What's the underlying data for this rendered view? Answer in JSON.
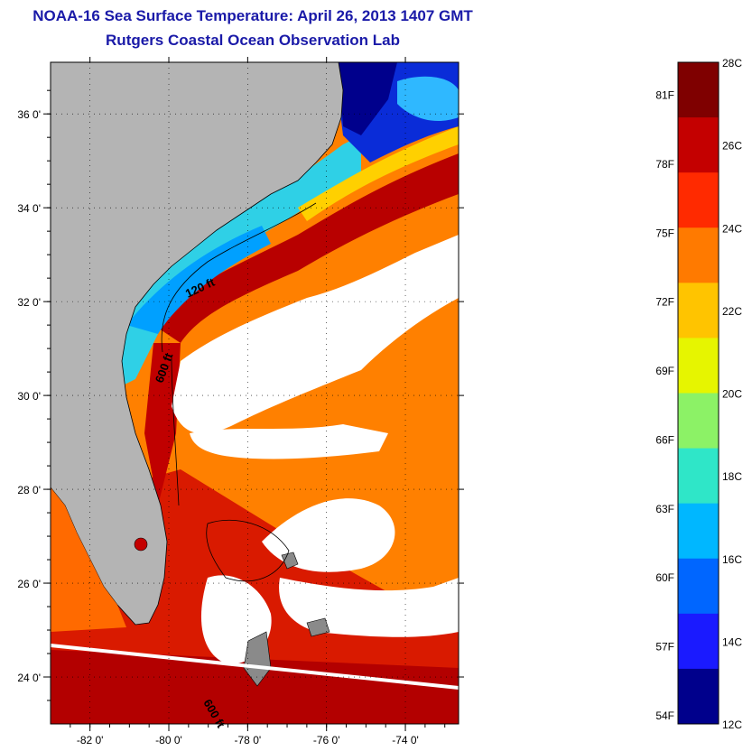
{
  "title": "NOAA-16 Sea Surface Temperature:  April 26, 2013 1407 GMT",
  "subtitle": "Rutgers Coastal Ocean Observation Lab",
  "lat_ticks": [
    {
      "value": 36,
      "label": "36 0'"
    },
    {
      "value": 34,
      "label": "34 0'"
    },
    {
      "value": 32,
      "label": "32 0'"
    },
    {
      "value": 30,
      "label": "30 0'"
    },
    {
      "value": 28,
      "label": "28 0'"
    },
    {
      "value": 26,
      "label": "26 0'"
    },
    {
      "value": 24,
      "label": "24 0'"
    }
  ],
  "lon_ticks": [
    {
      "value": -82,
      "label": "-82 0'"
    },
    {
      "value": -80,
      "label": "-80 0'"
    },
    {
      "value": -78,
      "label": "-78 0'"
    },
    {
      "value": -76,
      "label": "-76 0'"
    },
    {
      "value": -74,
      "label": "-74 0'"
    }
  ],
  "contour_labels": [
    "120 ft",
    "600 ft",
    "600 ft"
  ],
  "colorbar": {
    "celsius_labels": [
      "28C",
      "26C",
      "24C",
      "22C",
      "20C",
      "18C",
      "16C",
      "14C",
      "12C"
    ],
    "fahrenheit_labels": [
      "81F",
      "78F",
      "75F",
      "72F",
      "69F",
      "66F",
      "63F",
      "60F",
      "57F",
      "54F"
    ],
    "colors": [
      "#7f0000",
      "#c40000",
      "#ff2a00",
      "#ff7a00",
      "#ffc400",
      "#e6f500",
      "#8cf266",
      "#2fe6c8",
      "#00b7ff",
      "#0066ff",
      "#1a1aff",
      "#00008c"
    ]
  },
  "colors": {
    "land": "#b4b4b4",
    "cloud": "#ffffff",
    "title": "#1a1aa8"
  }
}
